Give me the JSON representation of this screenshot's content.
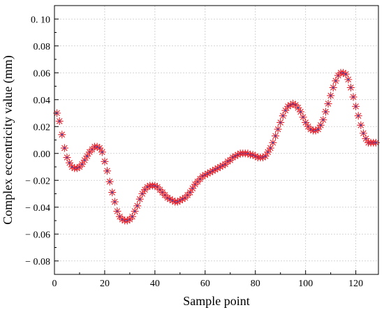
{
  "chart_data": {
    "type": "scatter",
    "title": "",
    "xlabel": "Sample point",
    "ylabel": "Complex eccentricity value (mm)",
    "xlim": [
      0,
      129
    ],
    "ylim": [
      -0.09,
      0.11
    ],
    "xticks": [
      0,
      20,
      40,
      60,
      80,
      100,
      120
    ],
    "xtick_labels": [
      "0",
      "20",
      "40",
      "60",
      "80",
      "100",
      "120"
    ],
    "yticks": [
      -0.08,
      -0.06,
      -0.04,
      -0.02,
      0.0,
      0.02,
      0.04,
      0.06,
      0.08,
      0.1
    ],
    "ytick_labels": [
      "− 0.08",
      "− 0.06",
      "− 0.04",
      "− 0.02",
      "0.00",
      "0.02",
      "0.04",
      "0.06",
      "0.08",
      "0. 10"
    ],
    "grid": true,
    "marker": "asterisk",
    "marker_color": "#ee1c24",
    "marker_center_color": "#3a4fb4",
    "series": [
      {
        "name": "",
        "x": [
          1,
          2,
          3,
          4,
          5,
          6,
          7,
          8,
          9,
          10,
          11,
          12,
          13,
          14,
          15,
          16,
          17,
          18,
          19,
          20,
          21,
          22,
          23,
          24,
          25,
          26,
          27,
          28,
          29,
          30,
          31,
          32,
          33,
          34,
          35,
          36,
          37,
          38,
          39,
          40,
          41,
          42,
          43,
          44,
          45,
          46,
          47,
          48,
          49,
          50,
          51,
          52,
          53,
          54,
          55,
          56,
          57,
          58,
          59,
          60,
          61,
          62,
          63,
          64,
          65,
          66,
          67,
          68,
          69,
          70,
          71,
          72,
          73,
          74,
          75,
          76,
          77,
          78,
          79,
          80,
          81,
          82,
          83,
          84,
          85,
          86,
          87,
          88,
          89,
          90,
          91,
          92,
          93,
          94,
          95,
          96,
          97,
          98,
          99,
          100,
          101,
          102,
          103,
          104,
          105,
          106,
          107,
          108,
          109,
          110,
          111,
          112,
          113,
          114,
          115,
          116,
          117,
          118,
          119,
          120,
          121,
          122,
          123,
          124,
          125,
          126,
          127,
          128
        ],
        "y": [
          0.03,
          0.024,
          0.014,
          0.004,
          -0.003,
          -0.007,
          -0.01,
          -0.011,
          -0.011,
          -0.01,
          -0.008,
          -0.005,
          -0.002,
          0.001,
          0.003,
          0.005,
          0.005,
          0.004,
          0.001,
          -0.006,
          -0.013,
          -0.021,
          -0.029,
          -0.036,
          -0.043,
          -0.047,
          -0.049,
          -0.05,
          -0.05,
          -0.049,
          -0.047,
          -0.043,
          -0.039,
          -0.034,
          -0.03,
          -0.027,
          -0.025,
          -0.024,
          -0.024,
          -0.024,
          -0.025,
          -0.027,
          -0.029,
          -0.031,
          -0.033,
          -0.034,
          -0.035,
          -0.036,
          -0.036,
          -0.035,
          -0.034,
          -0.033,
          -0.031,
          -0.029,
          -0.026,
          -0.023,
          -0.021,
          -0.019,
          -0.017,
          -0.016,
          -0.015,
          -0.014,
          -0.013,
          -0.012,
          -0.011,
          -0.01,
          -0.009,
          -0.008,
          -0.006,
          -0.005,
          -0.003,
          -0.002,
          -0.001,
          0.0,
          0.0,
          0.0,
          0.0,
          -0.001,
          -0.001,
          -0.002,
          -0.003,
          -0.003,
          -0.003,
          -0.002,
          0.001,
          0.004,
          0.008,
          0.013,
          0.018,
          0.023,
          0.028,
          0.032,
          0.035,
          0.036,
          0.037,
          0.036,
          0.034,
          0.031,
          0.027,
          0.023,
          0.02,
          0.018,
          0.017,
          0.017,
          0.018,
          0.021,
          0.025,
          0.031,
          0.037,
          0.043,
          0.049,
          0.054,
          0.058,
          0.06,
          0.06,
          0.059,
          0.055,
          0.049,
          0.042,
          0.035,
          0.028,
          0.021,
          0.015,
          0.011,
          0.008,
          0.008,
          0.008,
          0.008
        ]
      }
    ]
  }
}
